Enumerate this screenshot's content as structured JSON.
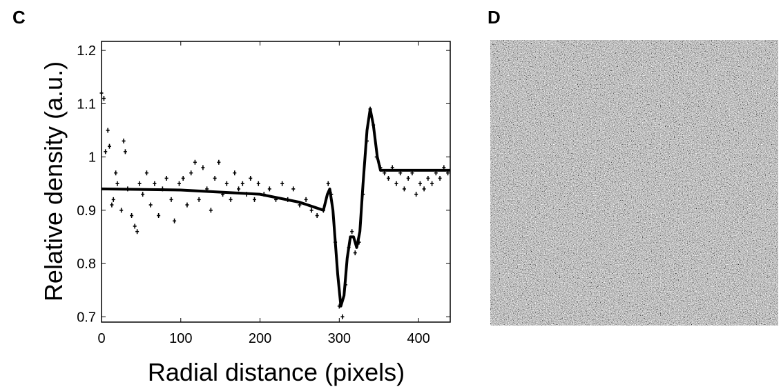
{
  "panel_labels": [
    "C",
    "D"
  ],
  "chart_data": {
    "type": "scatter",
    "xlabel": "Radial distance (pixels)",
    "ylabel": "Relative density (a.u.)",
    "xlim": [
      0,
      440
    ],
    "ylim": [
      0.69,
      1.217
    ],
    "xticks": [
      0,
      100,
      200,
      300,
      400
    ],
    "yticks": [
      0.7,
      0.8,
      0.9,
      1,
      1.1,
      1.2
    ],
    "series": [
      {
        "color": "#000000",
        "marker": "+",
        "x": [
          0,
          3,
          5,
          8,
          10,
          13,
          15,
          18,
          20,
          25,
          28,
          30,
          33,
          38,
          42,
          45,
          48,
          52,
          57,
          62,
          67,
          72,
          77,
          82,
          88,
          92,
          98,
          103,
          108,
          113,
          118,
          123,
          128,
          133,
          138,
          143,
          148,
          153,
          158,
          163,
          168,
          173,
          178,
          183,
          188,
          193,
          198,
          205,
          212,
          220,
          228,
          235,
          242,
          250,
          258,
          265,
          272,
          280,
          286,
          290,
          295,
          300,
          304,
          308,
          312,
          316,
          320,
          325,
          330,
          335,
          339,
          343,
          347,
          352,
          357,
          362,
          367,
          372,
          377,
          382,
          387,
          392,
          397,
          402,
          407,
          412,
          417,
          422,
          427,
          432,
          437
        ],
        "values": [
          1.12,
          1.11,
          1.01,
          1.05,
          1.02,
          0.91,
          0.92,
          0.97,
          0.95,
          0.9,
          1.03,
          1.01,
          0.94,
          0.89,
          0.87,
          0.86,
          0.95,
          0.93,
          0.97,
          0.91,
          0.95,
          0.89,
          0.94,
          0.96,
          0.92,
          0.88,
          0.95,
          0.96,
          0.91,
          0.97,
          0.99,
          0.92,
          0.98,
          0.94,
          0.9,
          0.96,
          0.99,
          0.93,
          0.95,
          0.92,
          0.97,
          0.94,
          0.95,
          0.93,
          0.96,
          0.92,
          0.95,
          0.93,
          0.94,
          0.92,
          0.95,
          0.92,
          0.94,
          0.91,
          0.92,
          0.9,
          0.89,
          0.9,
          0.95,
          0.93,
          0.84,
          0.72,
          0.7,
          0.76,
          0.83,
          0.86,
          0.82,
          0.84,
          0.93,
          1.03,
          1.09,
          1.06,
          1.0,
          0.98,
          0.97,
          0.96,
          0.98,
          0.95,
          0.97,
          0.94,
          0.96,
          0.97,
          0.93,
          0.95,
          0.94,
          0.96,
          0.95,
          0.97,
          0.96,
          0.98,
          0.97
        ]
      },
      {
        "color": "#000000",
        "line": true,
        "x": [
          0,
          100,
          200,
          250,
          270,
          280,
          285,
          288,
          292,
          298,
          302,
          306,
          310,
          314,
          318,
          322,
          326,
          330,
          335,
          339,
          343,
          348,
          352,
          360,
          440
        ],
        "values": [
          0.94,
          0.938,
          0.93,
          0.915,
          0.905,
          0.9,
          0.93,
          0.94,
          0.9,
          0.78,
          0.72,
          0.74,
          0.81,
          0.85,
          0.85,
          0.83,
          0.86,
          0.95,
          1.05,
          1.09,
          1.06,
          1.0,
          0.975,
          0.975,
          0.975
        ]
      }
    ]
  }
}
